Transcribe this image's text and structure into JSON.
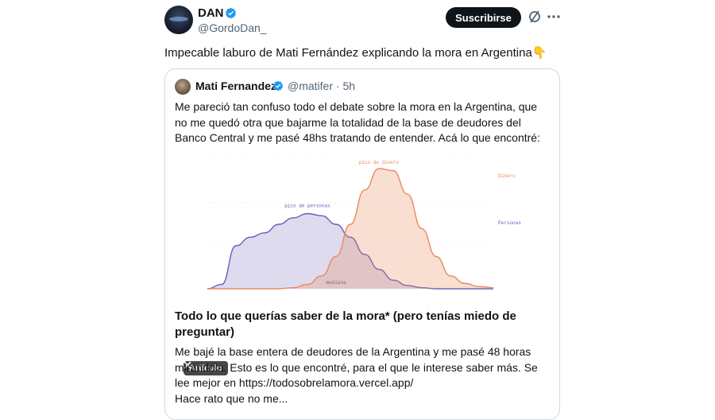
{
  "author": {
    "name": "DAN",
    "handle": "@GordoDan_"
  },
  "actions": {
    "subscribe_label": "Suscribirse"
  },
  "tweet": {
    "text": "Impecable laburo de Mati Fernández explicando la mora en Argentina",
    "emoji": "👇"
  },
  "quoted": {
    "name": "Mati Fernandez",
    "handle": "@matifer",
    "time": "· 5h",
    "text": "Me pareció tan confuso todo el debate sobre la mora en la Argentina, que no me quedó otra que bajarme la totalidad de la base de deudores del Banco Central y me pasé 48hs tratando de entender. Acá lo que encontré:",
    "badge": "Artículo",
    "article_title": "Todo lo que querías saber de la mora* (pero tenías miedo de preguntar)",
    "article_desc": "Me bajé la base entera de deudores de la Argentina y me pasé 48 horas mirándola. Esto es lo que encontré, para el que le interese saber más. Se lee mejor en https://todosobrelamora.vercel.app/",
    "article_more": "Hace rato que no me..."
  },
  "chart_data": {
    "type": "area",
    "x": [
      0,
      1,
      2,
      3,
      4,
      5,
      6,
      7,
      8,
      9,
      10,
      11,
      12,
      13,
      14,
      15,
      16,
      17,
      18,
      19,
      20
    ],
    "series": [
      {
        "name": "Personas",
        "color": "#6b5bb8",
        "values": [
          0,
          0.2,
          2.0,
          2.4,
          2.6,
          3.0,
          3.3,
          3.5,
          3.4,
          3.0,
          2.4,
          1.6,
          0.9,
          0.4,
          0.15,
          0.05,
          0,
          0,
          0,
          0,
          0
        ]
      },
      {
        "name": "Dinero",
        "color": "#e9895e",
        "values": [
          0,
          0,
          0,
          0,
          0,
          0,
          0.05,
          0.2,
          0.6,
          1.5,
          3.0,
          4.6,
          5.6,
          5.5,
          4.4,
          2.8,
          1.5,
          0.6,
          0.25,
          0.1,
          0.05
        ]
      }
    ],
    "annotations": {
      "personas_peak": "pico de personas",
      "dinero_peak": "pico de dinero",
      "median": "mediana"
    },
    "ylim": [
      0,
      6
    ]
  },
  "icons": {
    "verified": "verified-badge-icon",
    "grok": "grok-icon",
    "more": "more-icon",
    "x_logo": "x-logo-icon"
  }
}
